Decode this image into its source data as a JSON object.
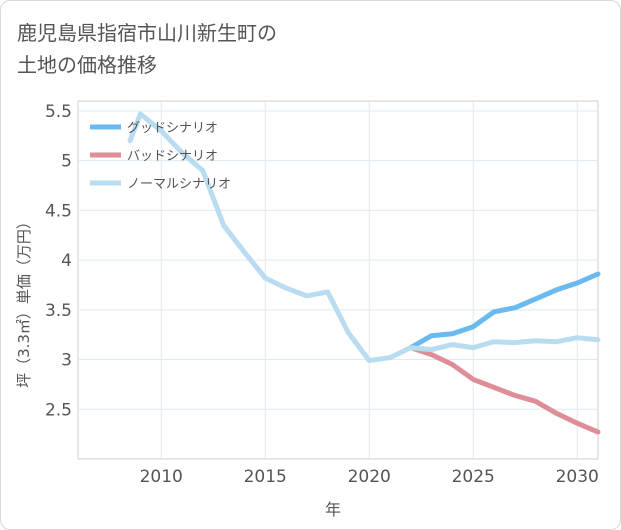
{
  "title_lines": [
    "鹿児島県指宿市山川新生町の",
    "土地の価格推移"
  ],
  "chart_data": {
    "type": "line",
    "title": "鹿児島県指宿市山川新生町の土地の価格推移",
    "xlabel": "年",
    "ylabel": "坪（3.3㎡）単価（万円）",
    "xlim": [
      2006,
      2031
    ],
    "ylim": [
      2.0,
      5.6
    ],
    "x_ticks": [
      2010,
      2015,
      2020,
      2025,
      2030
    ],
    "y_ticks": [
      2.5,
      3,
      3.5,
      4,
      4.5,
      5,
      5.5
    ],
    "y_tick_labels": [
      "2.5",
      "3",
      "3.5",
      "4",
      "4.5",
      "5",
      "5.5"
    ],
    "grid": true,
    "legend_position": "top-left",
    "series": [
      {
        "name": "グッドシナリオ",
        "color": "#6ab9ef",
        "points": [
          [
            2022,
            3.12
          ],
          [
            2023,
            3.24
          ],
          [
            2024,
            3.26
          ],
          [
            2025,
            3.33
          ],
          [
            2026,
            3.48
          ],
          [
            2027,
            3.52
          ],
          [
            2028,
            3.61
          ],
          [
            2029,
            3.7
          ],
          [
            2030,
            3.77
          ],
          [
            2031,
            3.86
          ]
        ]
      },
      {
        "name": "バッドシナリオ",
        "color": "#de8e96",
        "points": [
          [
            2022,
            3.12
          ],
          [
            2023,
            3.05
          ],
          [
            2024,
            2.95
          ],
          [
            2025,
            2.8
          ],
          [
            2026,
            2.72
          ],
          [
            2027,
            2.64
          ],
          [
            2028,
            2.58
          ],
          [
            2029,
            2.46
          ],
          [
            2030,
            2.36
          ],
          [
            2031,
            2.27
          ]
        ]
      },
      {
        "name": "ノーマルシナリオ",
        "color": "#b9dcf0",
        "points": [
          [
            2008.5,
            5.2
          ],
          [
            2009,
            5.47
          ],
          [
            2010,
            5.3
          ],
          [
            2011,
            5.08
          ],
          [
            2012,
            4.9
          ],
          [
            2013,
            4.35
          ],
          [
            2014,
            4.08
          ],
          [
            2015,
            3.82
          ],
          [
            2016,
            3.72
          ],
          [
            2017,
            3.64
          ],
          [
            2018,
            3.68
          ],
          [
            2019,
            3.27
          ],
          [
            2020,
            2.99
          ],
          [
            2021,
            3.02
          ],
          [
            2022,
            3.12
          ],
          [
            2023,
            3.1
          ],
          [
            2024,
            3.15
          ],
          [
            2025,
            3.12
          ],
          [
            2026,
            3.18
          ],
          [
            2027,
            3.17
          ],
          [
            2028,
            3.19
          ],
          [
            2029,
            3.18
          ],
          [
            2030,
            3.22
          ],
          [
            2031,
            3.2
          ]
        ]
      }
    ]
  }
}
